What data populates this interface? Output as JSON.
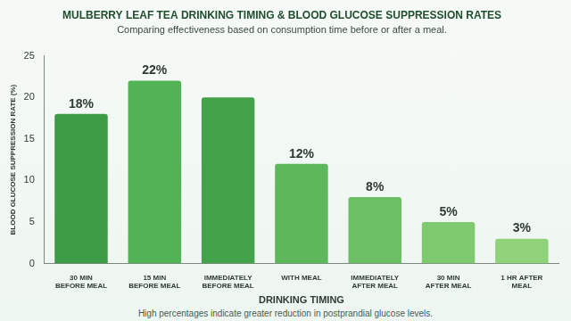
{
  "chart_data": {
    "type": "bar",
    "title": "MULBERRY LEAF TEA DRINKING TIMING & BLOOD GLUCOSE SUPPRESSION RATES",
    "subtitle": "Comparing effectiveness based on consumption time before or after a meal.",
    "x_label": "DRINKING TIMING",
    "y_label": "BLOOD GLUCOSE SUPPRESSION RATE (%)",
    "footnote": "High percentages indicate greater reduction in postprandial glucose levels.",
    "categories": [
      "30 MIN BEFORE MEAL",
      "15 MIN BEFORE MEAL",
      "IMMEDIATELY BEFORE MEAL",
      "WITH MEAL",
      "IMMEDIATELY AFTER MEAL",
      "30 MIN AFTER MEAL",
      "1 HR AFTER MEAL"
    ],
    "values": [
      18,
      22,
      20,
      12,
      8,
      5,
      3
    ],
    "value_labels": [
      "18%",
      "22%",
      null,
      "12%",
      "8%",
      "5%",
      "3%"
    ],
    "data_labels": true,
    "colors": [
      "#3d9a45",
      "#52b356",
      "#44a24a",
      "#5cb85a",
      "#6dbf63",
      "#7fc96e",
      "#8fd27a"
    ],
    "ylim": [
      0,
      25
    ],
    "yticks": [
      0,
      5,
      10,
      15,
      20,
      25
    ],
    "grid": false
  }
}
